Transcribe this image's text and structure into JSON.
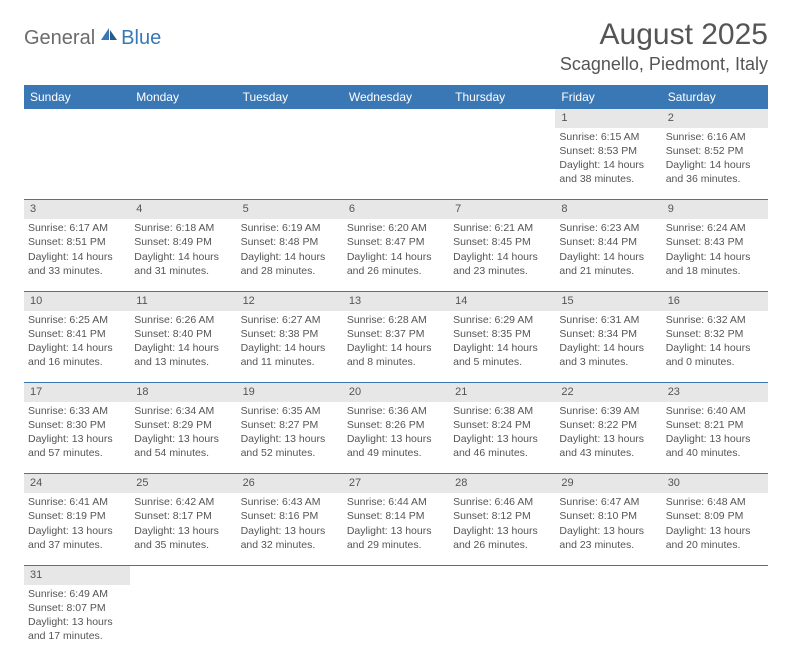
{
  "logo": {
    "part1": "General",
    "part2": "Blue"
  },
  "title": "August 2025",
  "location": "Scagnello, Piedmont, Italy",
  "colors": {
    "header_bg": "#3a77b5",
    "header_text": "#ffffff",
    "daynum_bg": "#e7e7e7",
    "border": "#3a77b5",
    "body_text": "#555555",
    "logo_gray": "#6b6b6b",
    "logo_blue": "#3a77b5"
  },
  "weekdays": [
    "Sunday",
    "Monday",
    "Tuesday",
    "Wednesday",
    "Thursday",
    "Friday",
    "Saturday"
  ],
  "weeks": [
    {
      "nums": [
        "",
        "",
        "",
        "",
        "",
        "1",
        "2"
      ],
      "cells": [
        null,
        null,
        null,
        null,
        null,
        {
          "sunrise": "6:15 AM",
          "sunset": "8:53 PM",
          "daylight": "14 hours and 38 minutes."
        },
        {
          "sunrise": "6:16 AM",
          "sunset": "8:52 PM",
          "daylight": "14 hours and 36 minutes."
        }
      ]
    },
    {
      "nums": [
        "3",
        "4",
        "5",
        "6",
        "7",
        "8",
        "9"
      ],
      "cells": [
        {
          "sunrise": "6:17 AM",
          "sunset": "8:51 PM",
          "daylight": "14 hours and 33 minutes."
        },
        {
          "sunrise": "6:18 AM",
          "sunset": "8:49 PM",
          "daylight": "14 hours and 31 minutes."
        },
        {
          "sunrise": "6:19 AM",
          "sunset": "8:48 PM",
          "daylight": "14 hours and 28 minutes."
        },
        {
          "sunrise": "6:20 AM",
          "sunset": "8:47 PM",
          "daylight": "14 hours and 26 minutes."
        },
        {
          "sunrise": "6:21 AM",
          "sunset": "8:45 PM",
          "daylight": "14 hours and 23 minutes."
        },
        {
          "sunrise": "6:23 AM",
          "sunset": "8:44 PM",
          "daylight": "14 hours and 21 minutes."
        },
        {
          "sunrise": "6:24 AM",
          "sunset": "8:43 PM",
          "daylight": "14 hours and 18 minutes."
        }
      ]
    },
    {
      "nums": [
        "10",
        "11",
        "12",
        "13",
        "14",
        "15",
        "16"
      ],
      "cells": [
        {
          "sunrise": "6:25 AM",
          "sunset": "8:41 PM",
          "daylight": "14 hours and 16 minutes."
        },
        {
          "sunrise": "6:26 AM",
          "sunset": "8:40 PM",
          "daylight": "14 hours and 13 minutes."
        },
        {
          "sunrise": "6:27 AM",
          "sunset": "8:38 PM",
          "daylight": "14 hours and 11 minutes."
        },
        {
          "sunrise": "6:28 AM",
          "sunset": "8:37 PM",
          "daylight": "14 hours and 8 minutes."
        },
        {
          "sunrise": "6:29 AM",
          "sunset": "8:35 PM",
          "daylight": "14 hours and 5 minutes."
        },
        {
          "sunrise": "6:31 AM",
          "sunset": "8:34 PM",
          "daylight": "14 hours and 3 minutes."
        },
        {
          "sunrise": "6:32 AM",
          "sunset": "8:32 PM",
          "daylight": "14 hours and 0 minutes."
        }
      ]
    },
    {
      "nums": [
        "17",
        "18",
        "19",
        "20",
        "21",
        "22",
        "23"
      ],
      "cells": [
        {
          "sunrise": "6:33 AM",
          "sunset": "8:30 PM",
          "daylight": "13 hours and 57 minutes."
        },
        {
          "sunrise": "6:34 AM",
          "sunset": "8:29 PM",
          "daylight": "13 hours and 54 minutes."
        },
        {
          "sunrise": "6:35 AM",
          "sunset": "8:27 PM",
          "daylight": "13 hours and 52 minutes."
        },
        {
          "sunrise": "6:36 AM",
          "sunset": "8:26 PM",
          "daylight": "13 hours and 49 minutes."
        },
        {
          "sunrise": "6:38 AM",
          "sunset": "8:24 PM",
          "daylight": "13 hours and 46 minutes."
        },
        {
          "sunrise": "6:39 AM",
          "sunset": "8:22 PM",
          "daylight": "13 hours and 43 minutes."
        },
        {
          "sunrise": "6:40 AM",
          "sunset": "8:21 PM",
          "daylight": "13 hours and 40 minutes."
        }
      ]
    },
    {
      "nums": [
        "24",
        "25",
        "26",
        "27",
        "28",
        "29",
        "30"
      ],
      "cells": [
        {
          "sunrise": "6:41 AM",
          "sunset": "8:19 PM",
          "daylight": "13 hours and 37 minutes."
        },
        {
          "sunrise": "6:42 AM",
          "sunset": "8:17 PM",
          "daylight": "13 hours and 35 minutes."
        },
        {
          "sunrise": "6:43 AM",
          "sunset": "8:16 PM",
          "daylight": "13 hours and 32 minutes."
        },
        {
          "sunrise": "6:44 AM",
          "sunset": "8:14 PM",
          "daylight": "13 hours and 29 minutes."
        },
        {
          "sunrise": "6:46 AM",
          "sunset": "8:12 PM",
          "daylight": "13 hours and 26 minutes."
        },
        {
          "sunrise": "6:47 AM",
          "sunset": "8:10 PM",
          "daylight": "13 hours and 23 minutes."
        },
        {
          "sunrise": "6:48 AM",
          "sunset": "8:09 PM",
          "daylight": "13 hours and 20 minutes."
        }
      ]
    },
    {
      "nums": [
        "31",
        "",
        "",
        "",
        "",
        "",
        ""
      ],
      "cells": [
        {
          "sunrise": "6:49 AM",
          "sunset": "8:07 PM",
          "daylight": "13 hours and 17 minutes."
        },
        null,
        null,
        null,
        null,
        null,
        null
      ]
    }
  ],
  "labels": {
    "sunrise": "Sunrise:",
    "sunset": "Sunset:",
    "daylight": "Daylight:"
  }
}
